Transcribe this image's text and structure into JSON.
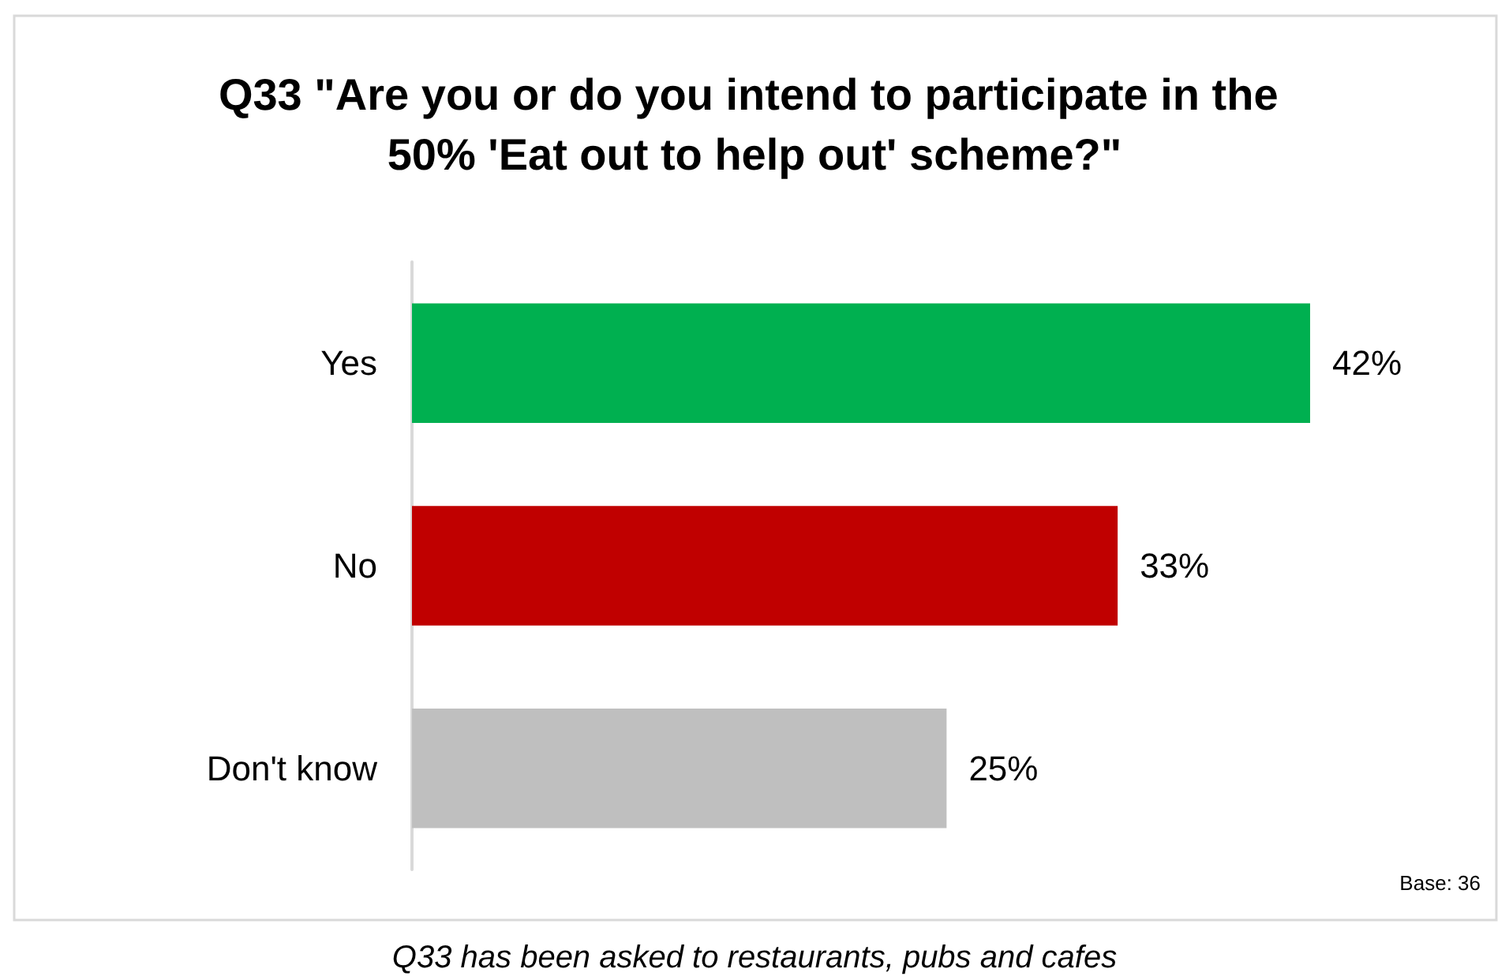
{
  "chart_data": {
    "type": "bar",
    "orientation": "horizontal",
    "title": "Q33 \"Are you or do you intend to participate in the 50% 'Eat out to help out' scheme?\"",
    "categories": [
      "Yes",
      "No",
      "Don't know"
    ],
    "values": [
      42,
      33,
      25
    ],
    "value_labels": [
      "42%",
      "33%",
      "25%"
    ],
    "colors": [
      "#00b050",
      "#c00000",
      "#bfbfbf"
    ],
    "annotations": [
      "Base: 36",
      "Q33 has been asked to restaurants, pubs and cafes"
    ]
  }
}
